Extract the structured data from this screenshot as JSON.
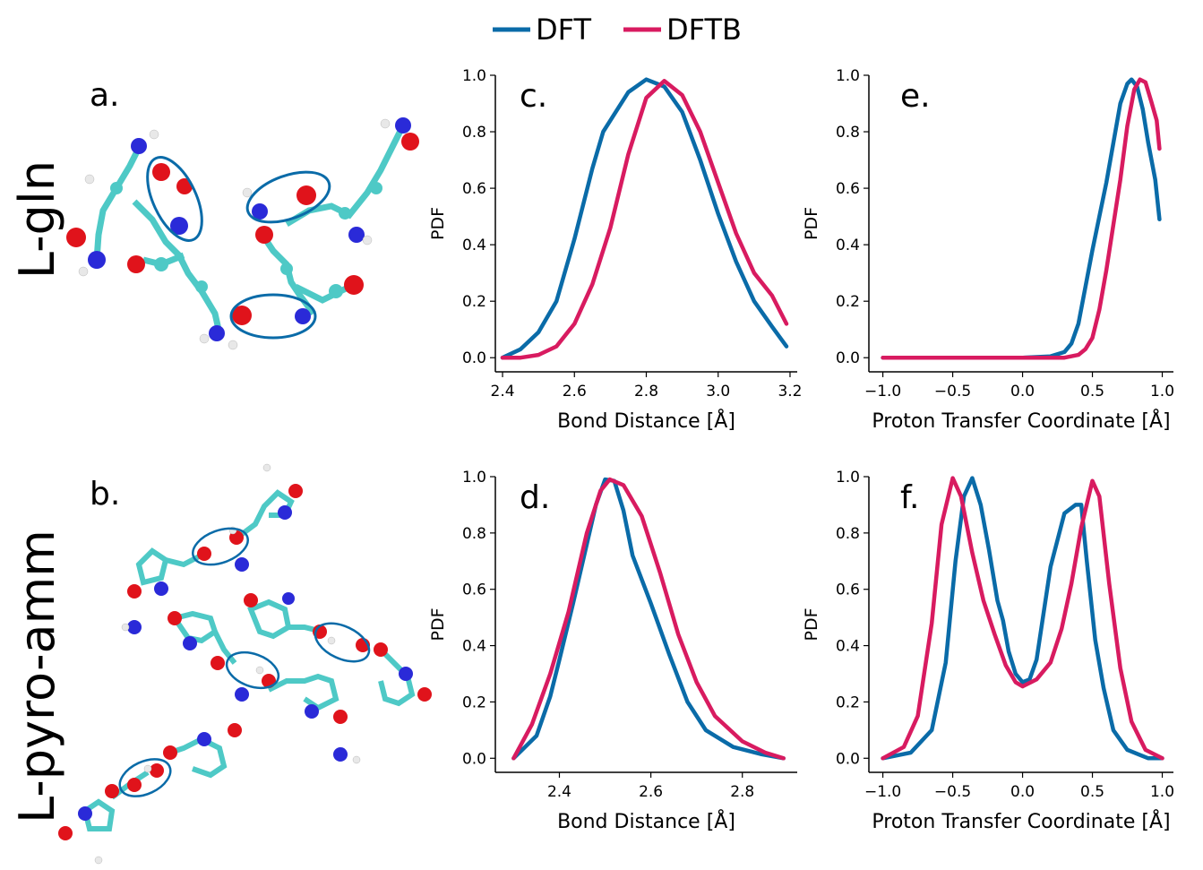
{
  "legend": [
    {
      "name": "DFT",
      "color": "#0a6ba8"
    },
    {
      "name": "DFTB",
      "color": "#d81b60"
    }
  ],
  "row_labels": [
    "L-gln",
    "L-pyro-amm"
  ],
  "molecule_panels": [
    {
      "letter": "a.",
      "depicts": "molecular-structure-L-gln",
      "highlight_count": 3
    },
    {
      "letter": "b.",
      "depicts": "molecular-structure-L-pyro-amm",
      "highlight_count": 4
    }
  ],
  "atom_colors": {
    "carbon": "#4ec9c6",
    "oxygen": "#e0131b",
    "nitrogen": "#2a2ad8",
    "hydrogen": "#e8e8e8",
    "highlight": "#0a6ba8"
  },
  "chart_data": [
    {
      "letter": "c.",
      "type": "line",
      "xlabel": "Bond Distance [Å]",
      "ylabel": "PDF",
      "xlim": [
        2.38,
        3.22
      ],
      "ylim": [
        -0.05,
        1.0
      ],
      "xticks": [
        "2.4",
        "2.6",
        "2.8",
        "3.0",
        "3.2"
      ],
      "xtick_values": [
        2.4,
        2.6,
        2.8,
        3.0,
        3.2
      ],
      "yticks": [
        "0.0",
        "0.2",
        "0.4",
        "0.6",
        "0.8",
        "1.0"
      ],
      "ytick_values": [
        0,
        0.2,
        0.4,
        0.6,
        0.8,
        1.0
      ],
      "series": [
        {
          "name": "DFT",
          "points": [
            [
              2.4,
              0.0
            ],
            [
              2.45,
              0.03
            ],
            [
              2.5,
              0.09
            ],
            [
              2.55,
              0.2
            ],
            [
              2.6,
              0.42
            ],
            [
              2.65,
              0.67
            ],
            [
              2.68,
              0.8
            ],
            [
              2.7,
              0.84
            ],
            [
              2.75,
              0.94
            ],
            [
              2.8,
              0.985
            ],
            [
              2.85,
              0.96
            ],
            [
              2.9,
              0.87
            ],
            [
              2.95,
              0.7
            ],
            [
              3.0,
              0.51
            ],
            [
              3.05,
              0.34
            ],
            [
              3.1,
              0.2
            ],
            [
              3.15,
              0.11
            ],
            [
              3.19,
              0.04
            ]
          ]
        },
        {
          "name": "DFTB",
          "points": [
            [
              2.4,
              0.0
            ],
            [
              2.45,
              0.0
            ],
            [
              2.5,
              0.01
            ],
            [
              2.55,
              0.04
            ],
            [
              2.6,
              0.12
            ],
            [
              2.65,
              0.26
            ],
            [
              2.7,
              0.46
            ],
            [
              2.75,
              0.72
            ],
            [
              2.8,
              0.92
            ],
            [
              2.85,
              0.98
            ],
            [
              2.9,
              0.93
            ],
            [
              2.95,
              0.8
            ],
            [
              3.0,
              0.62
            ],
            [
              3.05,
              0.44
            ],
            [
              3.1,
              0.3
            ],
            [
              3.15,
              0.22
            ],
            [
              3.19,
              0.12
            ]
          ]
        }
      ]
    },
    {
      "letter": "e.",
      "type": "line",
      "xlabel": "Proton Transfer Coordinate [Å]",
      "ylabel": "PDF",
      "xlim": [
        -1.1,
        1.08
      ],
      "ylim": [
        -0.05,
        1.0
      ],
      "xticks": [
        "−1.0",
        "−0.5",
        "0.0",
        "0.5",
        "1.0"
      ],
      "xtick_values": [
        -1.0,
        -0.5,
        0.0,
        0.5,
        1.0
      ],
      "yticks": [
        "0.0",
        "0.2",
        "0.4",
        "0.6",
        "0.8",
        "1.0"
      ],
      "ytick_values": [
        0,
        0.2,
        0.4,
        0.6,
        0.8,
        1.0
      ],
      "series": [
        {
          "name": "DFT",
          "points": [
            [
              -1.0,
              0.0
            ],
            [
              0.0,
              0.0
            ],
            [
              0.2,
              0.005
            ],
            [
              0.3,
              0.02
            ],
            [
              0.35,
              0.05
            ],
            [
              0.4,
              0.12
            ],
            [
              0.45,
              0.25
            ],
            [
              0.5,
              0.38
            ],
            [
              0.55,
              0.5
            ],
            [
              0.6,
              0.62
            ],
            [
              0.65,
              0.76
            ],
            [
              0.7,
              0.9
            ],
            [
              0.75,
              0.97
            ],
            [
              0.78,
              0.985
            ],
            [
              0.82,
              0.96
            ],
            [
              0.86,
              0.88
            ],
            [
              0.9,
              0.76
            ],
            [
              0.95,
              0.63
            ],
            [
              0.98,
              0.49
            ]
          ]
        },
        {
          "name": "DFTB",
          "points": [
            [
              -1.0,
              0.0
            ],
            [
              0.3,
              0.0
            ],
            [
              0.4,
              0.01
            ],
            [
              0.45,
              0.03
            ],
            [
              0.5,
              0.07
            ],
            [
              0.55,
              0.17
            ],
            [
              0.6,
              0.31
            ],
            [
              0.65,
              0.47
            ],
            [
              0.7,
              0.63
            ],
            [
              0.75,
              0.82
            ],
            [
              0.8,
              0.95
            ],
            [
              0.84,
              0.985
            ],
            [
              0.88,
              0.975
            ],
            [
              0.92,
              0.91
            ],
            [
              0.96,
              0.84
            ],
            [
              0.98,
              0.74
            ]
          ]
        }
      ]
    },
    {
      "letter": "d.",
      "type": "line",
      "xlabel": "Bond Distance [Å]",
      "ylabel": "PDF",
      "xlim": [
        2.26,
        2.92
      ],
      "ylim": [
        -0.05,
        1.0
      ],
      "xticks": [
        "2.4",
        "2.6",
        "2.8"
      ],
      "xtick_values": [
        2.4,
        2.6,
        2.8
      ],
      "yticks": [
        "0.0",
        "0.2",
        "0.4",
        "0.6",
        "0.8",
        "1.0"
      ],
      "ytick_values": [
        0,
        0.2,
        0.4,
        0.6,
        0.8,
        1.0
      ],
      "series": [
        {
          "name": "DFT",
          "points": [
            [
              2.3,
              0.0
            ],
            [
              2.35,
              0.08
            ],
            [
              2.38,
              0.22
            ],
            [
              2.4,
              0.35
            ],
            [
              2.43,
              0.55
            ],
            [
              2.46,
              0.76
            ],
            [
              2.48,
              0.9
            ],
            [
              2.5,
              0.99
            ],
            [
              2.52,
              0.985
            ],
            [
              2.54,
              0.88
            ],
            [
              2.56,
              0.72
            ],
            [
              2.6,
              0.55
            ],
            [
              2.64,
              0.37
            ],
            [
              2.68,
              0.2
            ],
            [
              2.72,
              0.1
            ],
            [
              2.78,
              0.04
            ],
            [
              2.84,
              0.015
            ],
            [
              2.89,
              0.0
            ]
          ]
        },
        {
          "name": "DFTB",
          "points": [
            [
              2.3,
              0.0
            ],
            [
              2.34,
              0.12
            ],
            [
              2.38,
              0.3
            ],
            [
              2.42,
              0.52
            ],
            [
              2.46,
              0.8
            ],
            [
              2.49,
              0.95
            ],
            [
              2.51,
              0.99
            ],
            [
              2.54,
              0.97
            ],
            [
              2.58,
              0.86
            ],
            [
              2.62,
              0.66
            ],
            [
              2.66,
              0.44
            ],
            [
              2.7,
              0.27
            ],
            [
              2.74,
              0.15
            ],
            [
              2.8,
              0.06
            ],
            [
              2.85,
              0.02
            ],
            [
              2.89,
              0.0
            ]
          ]
        }
      ]
    },
    {
      "letter": "f.",
      "type": "line",
      "xlabel": "Proton Transfer Coordinate [Å]",
      "ylabel": "PDF",
      "xlim": [
        -1.1,
        1.08
      ],
      "ylim": [
        -0.05,
        1.0
      ],
      "xticks": [
        "−1.0",
        "−0.5",
        "0.0",
        "0.5",
        "1.0"
      ],
      "xtick_values": [
        -1.0,
        -0.5,
        0.0,
        0.5,
        1.0
      ],
      "yticks": [
        "0.0",
        "0.2",
        "0.4",
        "0.6",
        "0.8",
        "1.0"
      ],
      "ytick_values": [
        0,
        0.2,
        0.4,
        0.6,
        0.8,
        1.0
      ],
      "series": [
        {
          "name": "DFT",
          "points": [
            [
              -1.0,
              0.0
            ],
            [
              -0.8,
              0.02
            ],
            [
              -0.65,
              0.1
            ],
            [
              -0.55,
              0.34
            ],
            [
              -0.48,
              0.7
            ],
            [
              -0.42,
              0.93
            ],
            [
              -0.36,
              0.995
            ],
            [
              -0.3,
              0.9
            ],
            [
              -0.24,
              0.74
            ],
            [
              -0.18,
              0.56
            ],
            [
              -0.14,
              0.49
            ],
            [
              -0.1,
              0.38
            ],
            [
              -0.05,
              0.3
            ],
            [
              0.0,
              0.27
            ],
            [
              0.05,
              0.28
            ],
            [
              0.1,
              0.35
            ],
            [
              0.2,
              0.68
            ],
            [
              0.3,
              0.87
            ],
            [
              0.38,
              0.9
            ],
            [
              0.42,
              0.9
            ],
            [
              0.46,
              0.7
            ],
            [
              0.52,
              0.42
            ],
            [
              0.58,
              0.25
            ],
            [
              0.65,
              0.1
            ],
            [
              0.75,
              0.03
            ],
            [
              0.9,
              0.0
            ],
            [
              1.0,
              0.0
            ]
          ]
        },
        {
          "name": "DFTB",
          "points": [
            [
              -1.0,
              0.0
            ],
            [
              -0.85,
              0.04
            ],
            [
              -0.75,
              0.15
            ],
            [
              -0.65,
              0.48
            ],
            [
              -0.58,
              0.83
            ],
            [
              -0.5,
              0.995
            ],
            [
              -0.44,
              0.93
            ],
            [
              -0.36,
              0.73
            ],
            [
              -0.28,
              0.56
            ],
            [
              -0.2,
              0.44
            ],
            [
              -0.12,
              0.33
            ],
            [
              -0.05,
              0.27
            ],
            [
              0.0,
              0.255
            ],
            [
              0.1,
              0.28
            ],
            [
              0.2,
              0.34
            ],
            [
              0.28,
              0.46
            ],
            [
              0.35,
              0.62
            ],
            [
              0.42,
              0.82
            ],
            [
              0.5,
              0.985
            ],
            [
              0.55,
              0.93
            ],
            [
              0.62,
              0.62
            ],
            [
              0.7,
              0.32
            ],
            [
              0.78,
              0.13
            ],
            [
              0.88,
              0.03
            ],
            [
              1.0,
              0.0
            ]
          ]
        }
      ]
    }
  ]
}
